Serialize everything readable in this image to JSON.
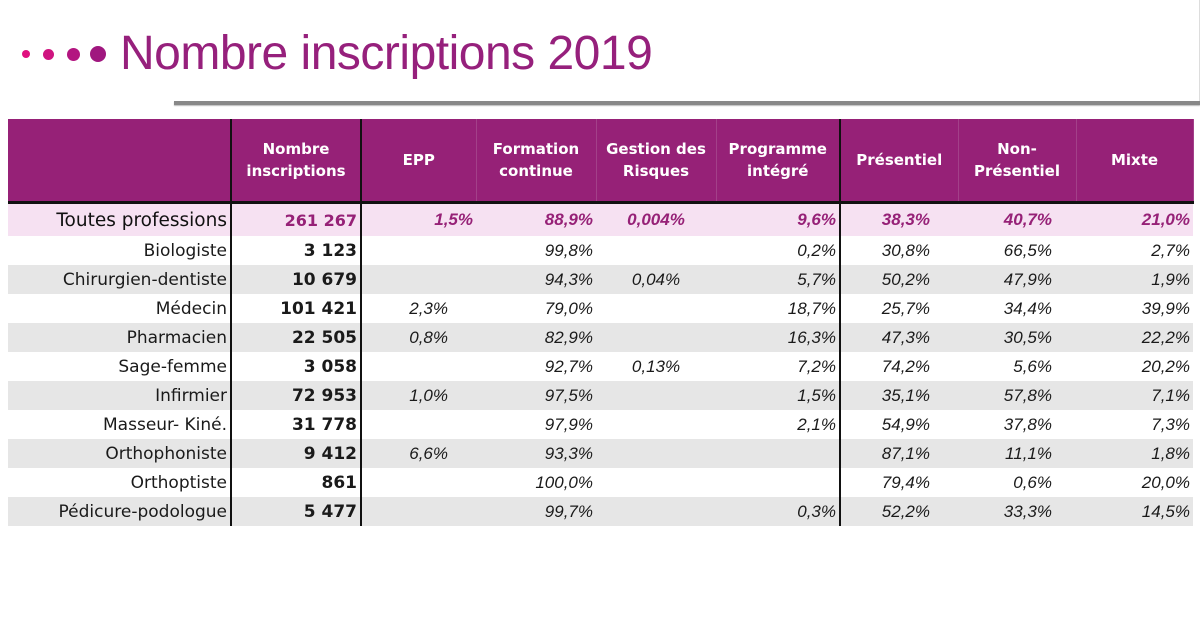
{
  "header": {
    "title": "Nombre inscriptions 2019",
    "accent_color": "#962177"
  },
  "table": {
    "columns": [
      "",
      "Nombre inscriptions",
      "EPP",
      "Formation continue",
      "Gestion des Risques",
      "Programme intégré",
      "Présentiel",
      "Non-Présentiel",
      "Mixte"
    ],
    "total": {
      "profession": "Toutes professions",
      "inscriptions": "261 267",
      "epp": "1,5%",
      "formation_continue": "88,9%",
      "gestion_risques": "0,004%",
      "programme_integre": "9,6%",
      "presentiel": "38,3%",
      "non_presentiel": "40,7%",
      "mixte": "21,0%"
    },
    "rows": [
      {
        "profession": "Biologiste",
        "inscriptions": "3 123",
        "epp": "",
        "formation_continue": "99,8%",
        "gestion_risques": "",
        "programme_integre": "0,2%",
        "presentiel": "30,8%",
        "non_presentiel": "66,5%",
        "mixte": "2,7%"
      },
      {
        "profession": "Chirurgien-dentiste",
        "inscriptions": "10 679",
        "epp": "",
        "formation_continue": "94,3%",
        "gestion_risques": "0,04%",
        "programme_integre": "5,7%",
        "presentiel": "50,2%",
        "non_presentiel": "47,9%",
        "mixte": "1,9%"
      },
      {
        "profession": "Médecin",
        "inscriptions": "101 421",
        "epp": "2,3%",
        "formation_continue": "79,0%",
        "gestion_risques": "",
        "programme_integre": "18,7%",
        "presentiel": "25,7%",
        "non_presentiel": "34,4%",
        "mixte": "39,9%"
      },
      {
        "profession": "Pharmacien",
        "inscriptions": "22 505",
        "epp": "0,8%",
        "formation_continue": "82,9%",
        "gestion_risques": "",
        "programme_integre": "16,3%",
        "presentiel": "47,3%",
        "non_presentiel": "30,5%",
        "mixte": "22,2%"
      },
      {
        "profession": "Sage-femme",
        "inscriptions": "3 058",
        "epp": "",
        "formation_continue": "92,7%",
        "gestion_risques": "0,13%",
        "programme_integre": "7,2%",
        "presentiel": "74,2%",
        "non_presentiel": "5,6%",
        "mixte": "20,2%"
      },
      {
        "profession": "Infirmier",
        "inscriptions": "72 953",
        "epp": "1,0%",
        "formation_continue": "97,5%",
        "gestion_risques": "",
        "programme_integre": "1,5%",
        "presentiel": "35,1%",
        "non_presentiel": "57,8%",
        "mixte": "7,1%"
      },
      {
        "profession": "Masseur- Kiné.",
        "inscriptions": "31 778",
        "epp": "",
        "formation_continue": "97,9%",
        "gestion_risques": "",
        "programme_integre": "2,1%",
        "presentiel": "54,9%",
        "non_presentiel": "37,8%",
        "mixte": "7,3%"
      },
      {
        "profession": "Orthophoniste",
        "inscriptions": "9 412",
        "epp": "6,6%",
        "formation_continue": "93,3%",
        "gestion_risques": "",
        "programme_integre": "",
        "presentiel": "87,1%",
        "non_presentiel": "11,1%",
        "mixte": "1,8%"
      },
      {
        "profession": "Orthoptiste",
        "inscriptions": "861",
        "epp": "",
        "formation_continue": "100,0%",
        "gestion_risques": "",
        "programme_integre": "",
        "presentiel": "79,4%",
        "non_presentiel": "0,6%",
        "mixte": "20,0%"
      },
      {
        "profession": "Pédicure-podologue",
        "inscriptions": "5 477",
        "epp": "",
        "formation_continue": "99,7%",
        "gestion_risques": "",
        "programme_integre": "0,3%",
        "presentiel": "52,2%",
        "non_presentiel": "33,3%",
        "mixte": "14,5%"
      }
    ]
  }
}
